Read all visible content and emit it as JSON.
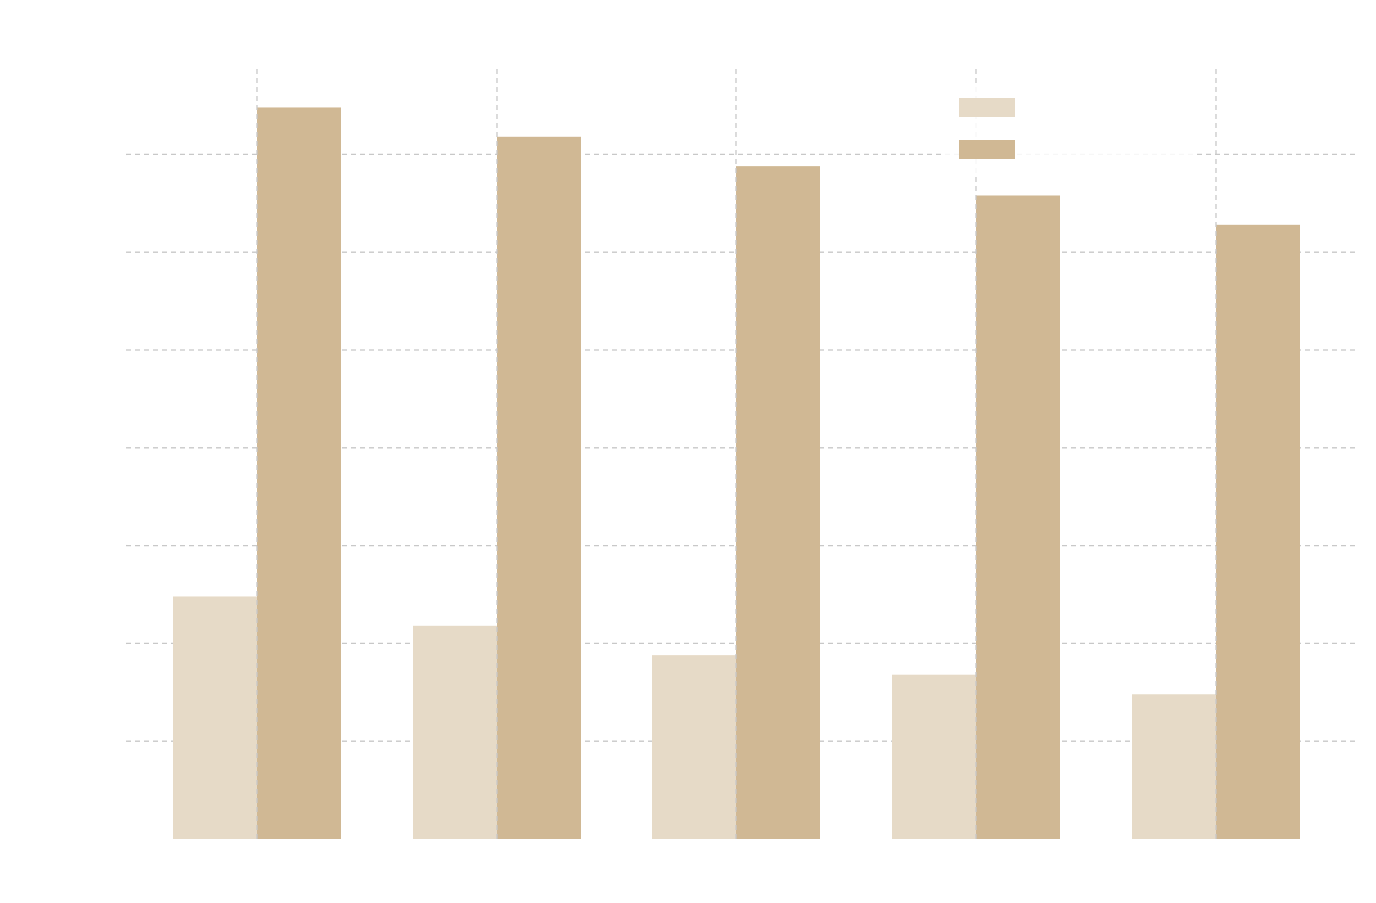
{
  "chart_data": {
    "type": "bar",
    "title": "",
    "xlabel": "",
    "ylabel": "",
    "categories": [
      "",
      "",
      "",
      "",
      ""
    ],
    "ylim": [
      0,
      7.5
    ],
    "yticks": [
      0,
      1,
      2,
      3,
      4,
      5,
      6,
      7
    ],
    "grid": true,
    "legend_position": "top-right",
    "series": [
      {
        "name": "",
        "color": "#e6dac7",
        "values": [
          2.48,
          2.18,
          1.88,
          1.68,
          1.48
        ]
      },
      {
        "name": "",
        "color": "#d0b894",
        "values": [
          7.48,
          7.18,
          6.88,
          6.58,
          6.28
        ]
      }
    ]
  }
}
